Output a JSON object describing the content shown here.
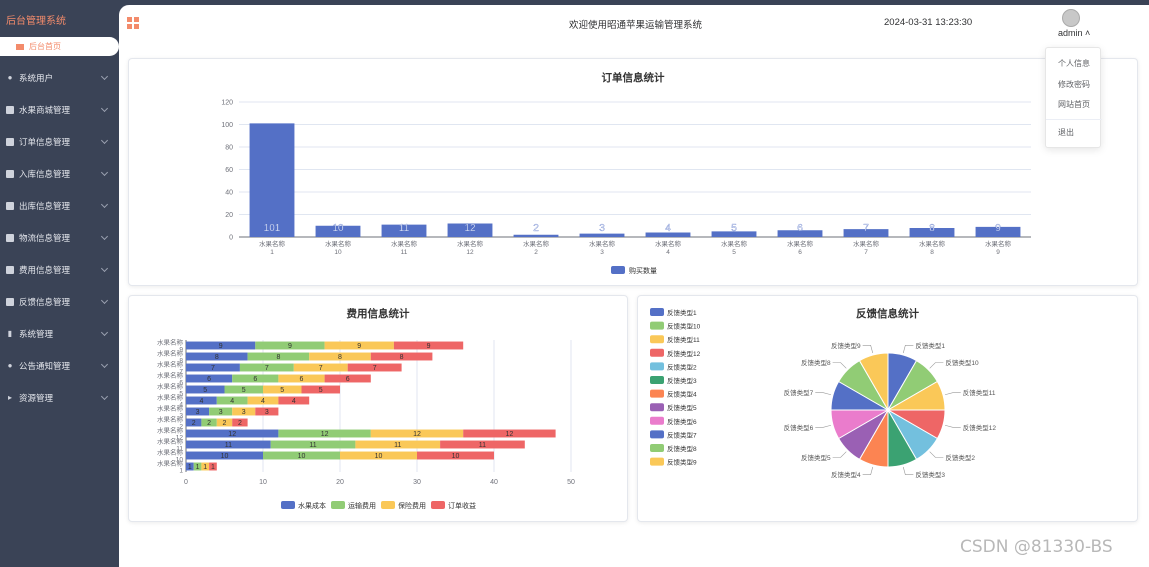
{
  "brand": "后台管理系统",
  "home_tab": "后台首页",
  "menu": [
    {
      "label": "系统用户",
      "icon": "user"
    },
    {
      "label": "水果商城管理",
      "icon": "square"
    },
    {
      "label": "订单信息管理",
      "icon": "square"
    },
    {
      "label": "入库信息管理",
      "icon": "square"
    },
    {
      "label": "出库信息管理",
      "icon": "square"
    },
    {
      "label": "物流信息管理",
      "icon": "square"
    },
    {
      "label": "费用信息管理",
      "icon": "square"
    },
    {
      "label": "反馈信息管理",
      "icon": "square"
    },
    {
      "label": "系统管理",
      "icon": "bar-chart"
    },
    {
      "label": "公告通知管理",
      "icon": "info"
    },
    {
      "label": "资源管理",
      "icon": "flag"
    }
  ],
  "header": {
    "welcome": "欢迎使用昭通苹果运输管理系统",
    "datetime": "2024-03-31 13:23:30",
    "username": "admin ˄"
  },
  "dropdown": {
    "items": [
      "个人信息",
      "修改密码",
      "网站首页",
      "退出"
    ]
  },
  "colors": {
    "accent": "#f38b6b",
    "sidebar": "#3a4356",
    "blue": "#5470c6",
    "green": "#91cc75",
    "yellow": "#fac858",
    "red": "#ee6666",
    "cyan": "#73c0de",
    "teal": "#3ba272",
    "orange": "#fc8452",
    "purple": "#9a60b4",
    "pink": "#ea7ccc"
  },
  "watermark": "CSDN @81330-BS",
  "chart_data": [
    {
      "type": "bar",
      "title": "订单信息统计",
      "categories": [
        "水果名称 1",
        "水果名称 10",
        "水果名称 11",
        "水果名称 12",
        "水果名称 2",
        "水果名称 3",
        "水果名称 4",
        "水果名称 5",
        "水果名称 6",
        "水果名称 7",
        "水果名称 8",
        "水果名称 9"
      ],
      "series": [
        {
          "name": "购买数量",
          "values": [
            101,
            10,
            11,
            12,
            2,
            3,
            4,
            5,
            6,
            7,
            8,
            9
          ]
        }
      ],
      "ylim": [
        0,
        120
      ],
      "yticks": [
        0,
        20,
        40,
        60,
        80,
        100,
        120
      ],
      "legend": "bottom"
    },
    {
      "type": "bar",
      "orientation": "horizontal-stacked",
      "title": "费用信息统计",
      "categories": [
        "水果名称 1",
        "水果名称 10",
        "水果名称 11",
        "水果名称 12",
        "水果名称 2",
        "水果名称 3",
        "水果名称 4",
        "水果名称 5",
        "水果名称 6",
        "水果名称 7",
        "水果名称 8",
        "水果名称 9"
      ],
      "series": [
        {
          "name": "水果成本",
          "values": [
            1,
            10,
            11,
            12,
            2,
            3,
            4,
            5,
            6,
            7,
            8,
            9
          ]
        },
        {
          "name": "运输费用",
          "values": [
            1,
            10,
            11,
            12,
            2,
            3,
            4,
            5,
            6,
            7,
            8,
            9
          ]
        },
        {
          "name": "保险费用",
          "values": [
            1,
            10,
            11,
            12,
            2,
            3,
            4,
            5,
            6,
            7,
            8,
            9
          ]
        },
        {
          "name": "订单收益",
          "values": [
            1,
            10,
            11,
            12,
            2,
            3,
            4,
            5,
            6,
            7,
            8,
            9
          ]
        }
      ],
      "xlim": [
        0,
        50
      ],
      "xticks": [
        0,
        10,
        20,
        30,
        40,
        50
      ],
      "legend": "bottom"
    },
    {
      "type": "pie",
      "title": "反馈信息统计",
      "labels": [
        "反馈类型1",
        "反馈类型10",
        "反馈类型11",
        "反馈类型12",
        "反馈类型2",
        "反馈类型3",
        "反馈类型4",
        "反馈类型5",
        "反馈类型6",
        "反馈类型7",
        "反馈类型8",
        "反馈类型9"
      ],
      "values": [
        1,
        1,
        1,
        1,
        1,
        1,
        1,
        1,
        1,
        1,
        1,
        1
      ],
      "legend": "top-left"
    }
  ]
}
